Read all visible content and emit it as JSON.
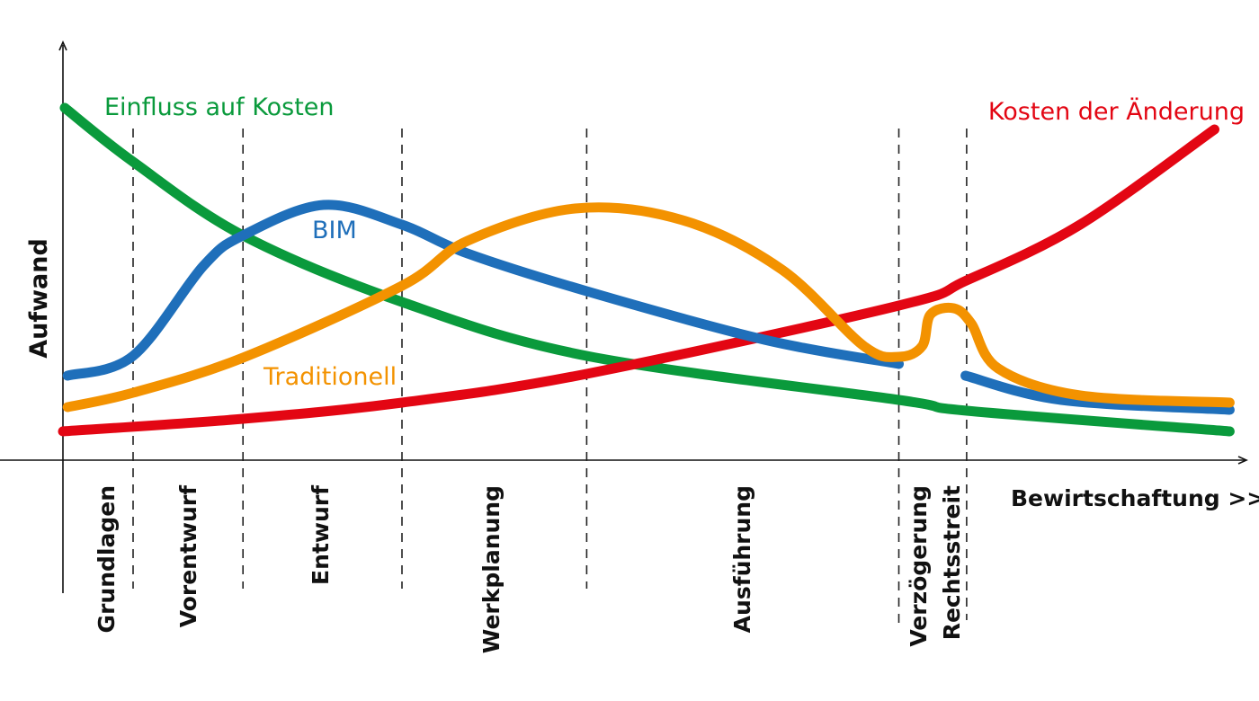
{
  "chart_data": {
    "type": "line",
    "title": "",
    "xlabel": "Bewirtschaftung >>",
    "ylabel": "Aufwand",
    "xlim": [
      0,
      100
    ],
    "ylim": [
      0,
      100
    ],
    "grid": false,
    "phases": [
      {
        "label": "Grundlagen",
        "start": 0,
        "end": 6
      },
      {
        "label": "Vorentwurf",
        "start": 6,
        "end": 15.4
      },
      {
        "label": "Entwurf",
        "start": 15.4,
        "end": 29
      },
      {
        "label": "Werkplanung",
        "start": 29,
        "end": 44.8
      },
      {
        "label": "Ausführung",
        "start": 44.8,
        "end": 71.5
      },
      {
        "label": "Verzögerung",
        "start": 71.5,
        "end": 74.4
      },
      {
        "label": "Rechtsstreit",
        "start": 74.4,
        "end": 77.3
      }
    ],
    "dividers": [
      6,
      15.4,
      29,
      44.8,
      71.5,
      77.3
    ],
    "series": [
      {
        "name": "Einfluss auf Kosten",
        "color": "#0a9a3c",
        "segments": [
          [
            [
              0.15,
              98
            ],
            [
              6,
              83
            ],
            [
              15.4,
              62.5
            ],
            [
              29,
              44
            ],
            [
              44.8,
              29
            ],
            [
              71.5,
              16.75
            ],
            [
              77.3,
              13.75
            ],
            [
              99.8,
              8
            ]
          ]
        ]
      },
      {
        "name": "Kosten der Änderung",
        "color": "#e30613",
        "segments": [
          [
            [
              0,
              8
            ],
            [
              15.4,
              11.5
            ],
            [
              29,
              16
            ],
            [
              44.8,
              24
            ],
            [
              71.5,
              43
            ],
            [
              77.3,
              50
            ],
            [
              87,
              65.5
            ],
            [
              98.5,
              92
            ]
          ]
        ]
      },
      {
        "name": "BIM",
        "color": "#1f6fba",
        "segments": [
          [
            [
              0.4,
              23.5
            ],
            [
              6,
              29
            ],
            [
              12,
              54
            ],
            [
              15.4,
              62.5
            ],
            [
              22.3,
              71
            ],
            [
              29,
              65.5
            ],
            [
              34.6,
              57.5
            ],
            [
              44.8,
              47
            ],
            [
              60,
              33.5
            ],
            [
              71.5,
              26.75
            ]
          ],
          [
            [
              77.2,
              23.5
            ],
            [
              85.4,
              16.75
            ],
            [
              99.8,
              14
            ]
          ]
        ]
      },
      {
        "name": "Traditionell",
        "color": "#f39200",
        "segments": [
          [
            [
              0.4,
              14.75
            ],
            [
              6,
              18.75
            ],
            [
              15.4,
              28.5
            ],
            [
              29,
              48.5
            ],
            [
              34.6,
              61
            ],
            [
              43.8,
              70
            ],
            [
              53,
              66.75
            ],
            [
              61.5,
              53
            ],
            [
              68.5,
              31.75
            ],
            [
              71.5,
              28.75
            ],
            [
              73.5,
              31.75
            ],
            [
              74.2,
              40.5
            ],
            [
              76.2,
              42.25
            ],
            [
              77.7,
              38
            ],
            [
              80,
              25.5
            ],
            [
              87,
              18
            ],
            [
              99.8,
              16
            ]
          ]
        ]
      }
    ]
  }
}
